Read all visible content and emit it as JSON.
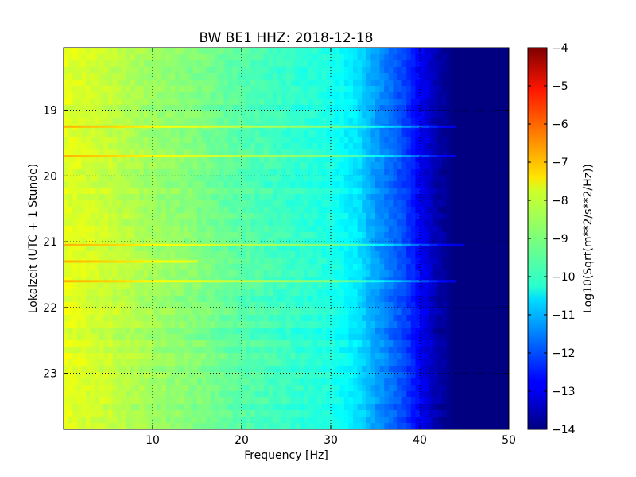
{
  "chart_data": {
    "type": "heatmap",
    "title": "BW BE1 HHZ: 2018-12-18",
    "xlabel": "Frequency [Hz]",
    "ylabel": "Lokalzeit (UTC + 1 Stunde)",
    "xlim": [
      0,
      50
    ],
    "ylim": [
      18.05,
      23.85
    ],
    "y_inverted": true,
    "x_ticks": [
      10,
      20,
      30,
      40,
      50
    ],
    "y_ticks": [
      19,
      20,
      21,
      22,
      23
    ],
    "grid": true,
    "colormap": "jet",
    "colorbar": {
      "label": "Log10(Sqrt(m**2/s**2/Hz))",
      "range": [
        -14,
        -4
      ],
      "ticks": [
        -4,
        -5,
        -6,
        -7,
        -8,
        -9,
        -10,
        -11,
        -12,
        -13,
        -14
      ]
    },
    "spectral_profile": {
      "frequency": [
        0,
        5,
        10,
        15,
        20,
        25,
        30,
        33,
        35,
        38,
        40,
        42,
        44,
        50
      ],
      "value": [
        -8.0,
        -8.3,
        -8.7,
        -9.0,
        -9.4,
        -9.7,
        -10.0,
        -10.5,
        -11.2,
        -12.0,
        -12.8,
        -13.6,
        -14.0,
        -14.0
      ]
    },
    "bright_bands": [
      {
        "time": 19.25,
        "fmax": 44
      },
      {
        "time": 19.7,
        "fmax": 44
      },
      {
        "time": 21.05,
        "fmax": 45
      },
      {
        "time": 21.3,
        "fmax": 15
      },
      {
        "time": 21.6,
        "fmax": 44
      }
    ]
  }
}
